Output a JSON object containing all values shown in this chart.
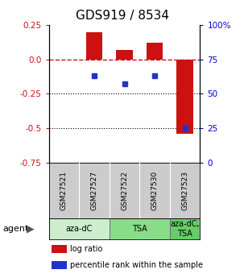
{
  "title": "GDS919 / 8534",
  "samples": [
    "GSM27521",
    "GSM27527",
    "GSM27522",
    "GSM27530",
    "GSM27523"
  ],
  "log_ratios": [
    0.0,
    0.2,
    0.07,
    0.12,
    -0.54
  ],
  "percentile_ranks": [
    null,
    63,
    57,
    63,
    25
  ],
  "ylim_left": [
    -0.75,
    0.25
  ],
  "ylim_right": [
    0,
    100
  ],
  "hline_zero": 0.0,
  "hlines_dotted": [
    -0.25,
    -0.5
  ],
  "bar_color": "#cc1111",
  "dot_color": "#2233cc",
  "agent_groups": [
    {
      "label": "aza-dC",
      "samples": [
        0,
        1
      ],
      "color": "#cceecc"
    },
    {
      "label": "TSA",
      "samples": [
        2,
        3
      ],
      "color": "#88dd88"
    },
    {
      "label": "aza-dC,\nTSA",
      "samples": [
        4
      ],
      "color": "#66cc66"
    }
  ],
  "legend_items": [
    {
      "color": "#cc1111",
      "label": "log ratio"
    },
    {
      "color": "#2233cc",
      "label": "percentile rank within the sample"
    }
  ],
  "bar_width": 0.55,
  "background_color": "#ffffff",
  "plot_bg": "#ffffff",
  "left_tick_color": "#cc1111",
  "right_tick_color": "#0000cc",
  "title_fontsize": 11,
  "tick_fontsize": 7.5,
  "sample_label_bg": "#cccccc",
  "left_ticks": [
    0.25,
    0.0,
    -0.25,
    -0.5,
    -0.75
  ],
  "right_ticks": [
    100,
    75,
    50,
    25,
    0
  ]
}
